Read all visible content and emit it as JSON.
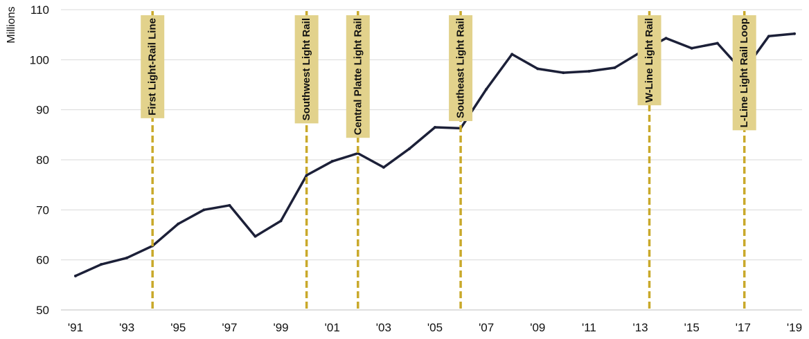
{
  "chart_data": {
    "type": "line",
    "title": "",
    "xlabel": "",
    "ylabel": "Millions",
    "ylim": [
      50,
      110
    ],
    "yticks": [
      50,
      60,
      70,
      80,
      90,
      100,
      110
    ],
    "xlim": [
      1991,
      2019
    ],
    "xticks": [
      1991,
      1993,
      1995,
      1997,
      1999,
      2001,
      2003,
      2005,
      2007,
      2009,
      2011,
      2013,
      2015,
      2017,
      2019
    ],
    "xtick_labels": [
      "'91",
      "'93",
      "'95",
      "'97",
      "'99",
      "'01",
      "'03",
      "'05",
      "'07",
      "'09",
      "'11",
      "'13",
      "'15",
      "'17",
      "'19"
    ],
    "grid": "horizontal",
    "colors": {
      "line": "#1c2038",
      "marker": "#c9a92b",
      "label_bg": "#e2d28c",
      "grid": "#d9d9d9"
    },
    "series": [
      {
        "name": "",
        "x": [
          1991,
          1992,
          1993,
          1994,
          1995,
          1996,
          1997,
          1998,
          1999,
          2000,
          2001,
          2002,
          2003,
          2004,
          2005,
          2006,
          2007,
          2008,
          2009,
          2010,
          2011,
          2012,
          2013,
          2014,
          2015,
          2016,
          2017,
          2018,
          2019
        ],
        "values": [
          56.8,
          59.1,
          60.4,
          62.8,
          67.2,
          70.0,
          70.9,
          64.7,
          67.8,
          76.9,
          79.7,
          81.3,
          78.5,
          82.2,
          86.5,
          86.3,
          94.1,
          101.1,
          98.2,
          97.4,
          97.7,
          98.4,
          101.5,
          104.3,
          102.3,
          103.3,
          97.6,
          104.7,
          105.2
        ]
      }
    ],
    "annotations": [
      {
        "x": 1994,
        "label": "First Light-Rail Line"
      },
      {
        "x": 2000,
        "label": "Southwest Light Rail"
      },
      {
        "x": 2002,
        "label": "Central Platte Light Rail"
      },
      {
        "x": 2006,
        "label": "Southeast Light Rail"
      },
      {
        "x": 2013.35,
        "label": "W-Line Light Rail"
      },
      {
        "x": 2017.05,
        "label": "L-Line Light Rail Loop"
      }
    ]
  }
}
